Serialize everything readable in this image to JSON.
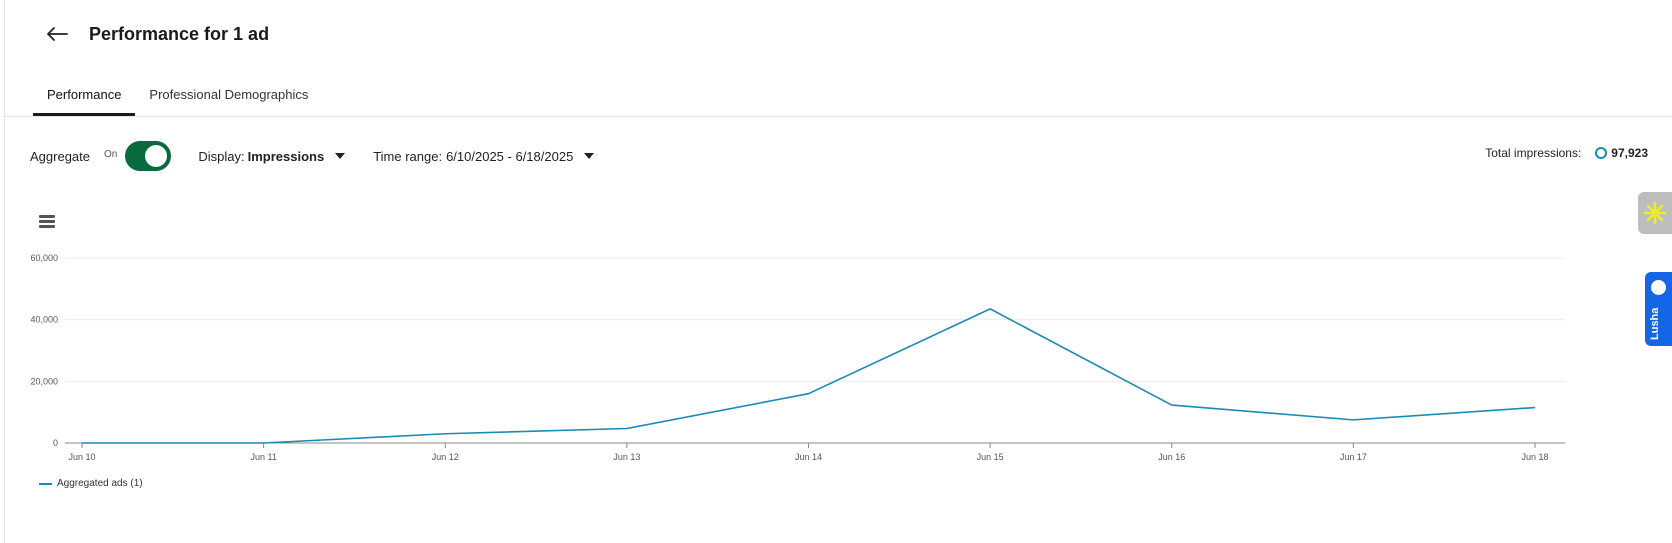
{
  "header": {
    "title": "Performance for 1 ad"
  },
  "tabs": [
    {
      "label": "Performance",
      "active": true
    },
    {
      "label": "Professional Demographics",
      "active": false
    }
  ],
  "controls": {
    "aggregate_label": "Aggregate",
    "toggle_state_label": "On",
    "display_prefix": "Display:",
    "display_value": "Impressions",
    "time_range_prefix": "Time range:",
    "time_range_value": "6/10/2025 - 6/18/2025"
  },
  "totals": {
    "label": "Total impressions:",
    "value": "97,923"
  },
  "colors": {
    "series": "#1a8bb5",
    "toggle_on": "#0a6b3e",
    "lusha_blue": "#1566e6"
  },
  "chart_data": {
    "type": "line",
    "categories": [
      "Jun 10",
      "Jun 11",
      "Jun 12",
      "Jun 13",
      "Jun 14",
      "Jun 15",
      "Jun 16",
      "Jun 17",
      "Jun 18"
    ],
    "series": [
      {
        "name": "Aggregated ads (1)",
        "values": [
          0,
          0,
          3000,
          4700,
          16000,
          43500,
          12300,
          7500,
          11500
        ]
      }
    ],
    "ylim": [
      0,
      60000
    ],
    "yticks": [
      "0",
      "20,000",
      "40,000",
      "60,000"
    ],
    "ytick_values": [
      0,
      20000,
      40000,
      60000
    ],
    "grid": true,
    "legend_position": "bottom-left"
  },
  "side_widgets": {
    "lusha_label": "Lusha"
  },
  "icons": {
    "back": "arrow-left-icon",
    "menu": "hamburger-menu-icon",
    "widget": "sparkle-icon"
  }
}
